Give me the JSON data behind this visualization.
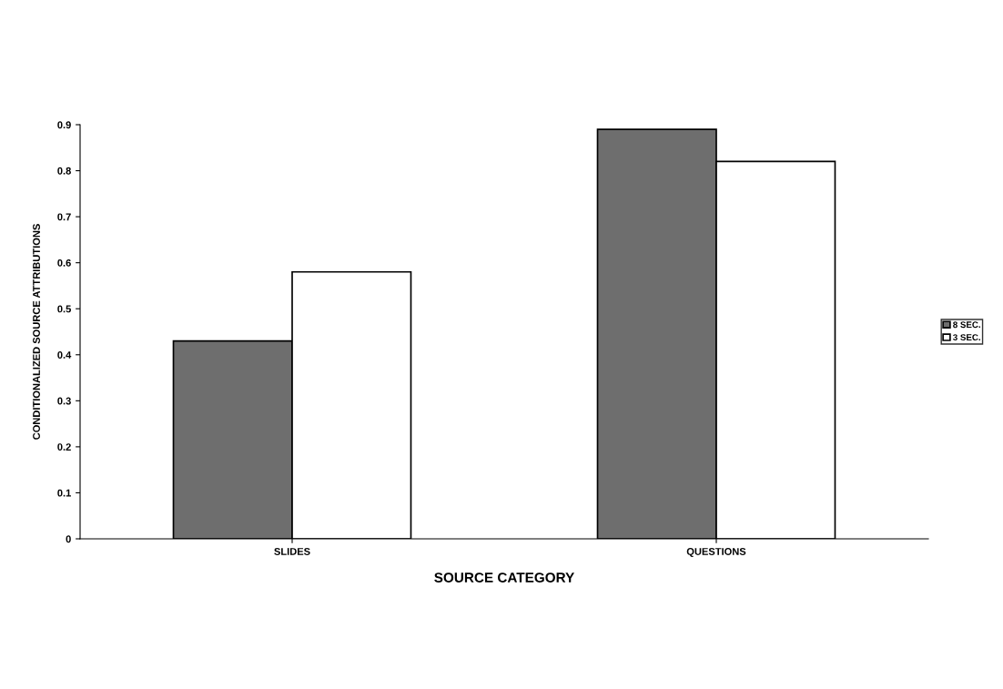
{
  "chart_data": {
    "type": "bar",
    "xlabel": "SOURCE CATEGORY",
    "ylabel": "CONDITIONALIZED SOURCE ATTRIBUTIONS",
    "categories": [
      "SLIDES",
      "QUESTIONS"
    ],
    "series": [
      {
        "name": "8 SEC.",
        "color": "#6e6e6e",
        "values": [
          0.43,
          0.89
        ]
      },
      {
        "name": "3 SEC.",
        "color": "#ffffff",
        "values": [
          0.58,
          0.82
        ]
      }
    ],
    "ylim": [
      0,
      0.9
    ],
    "yticks": [
      0,
      0.1,
      0.2,
      0.3,
      0.4,
      0.5,
      0.6,
      0.7,
      0.8,
      0.9
    ],
    "grid": false,
    "legend": "right"
  }
}
